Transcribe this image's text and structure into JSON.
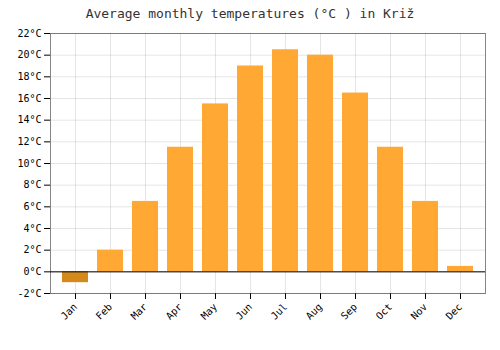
{
  "chart_data": {
    "type": "bar",
    "title": "Average monthly temperatures (°C ) in Križ",
    "categories": [
      "Jan",
      "Feb",
      "Mar",
      "Apr",
      "May",
      "Jun",
      "Jul",
      "Aug",
      "Sep",
      "Oct",
      "Nov",
      "Dec"
    ],
    "values": [
      -1.0,
      2.0,
      6.5,
      11.5,
      15.5,
      19.0,
      20.5,
      20.0,
      16.5,
      11.5,
      6.5,
      0.5
    ],
    "colors": [
      "#D4891A",
      "#FFA833",
      "#FFA833",
      "#FFA833",
      "#FFA833",
      "#FFA833",
      "#FFA833",
      "#FFA833",
      "#FFA833",
      "#FFA833",
      "#FFA833",
      "#FFA833"
    ],
    "ylim": [
      -2,
      22
    ],
    "yticks": [
      {
        "value": -2,
        "label": "-2°C"
      },
      {
        "value": 0,
        "label": "0°C"
      },
      {
        "value": 2,
        "label": "2°C"
      },
      {
        "value": 4,
        "label": "4°C"
      },
      {
        "value": 6,
        "label": "6°C"
      },
      {
        "value": 8,
        "label": "8°C"
      },
      {
        "value": 10,
        "label": "10°C"
      },
      {
        "value": 12,
        "label": "12°C"
      },
      {
        "value": 14,
        "label": "14°C"
      },
      {
        "value": 16,
        "label": "16°C"
      },
      {
        "value": 18,
        "label": "18°C"
      },
      {
        "value": 20,
        "label": "20°C"
      },
      {
        "value": 22,
        "label": "22°C"
      }
    ],
    "grid": true
  }
}
